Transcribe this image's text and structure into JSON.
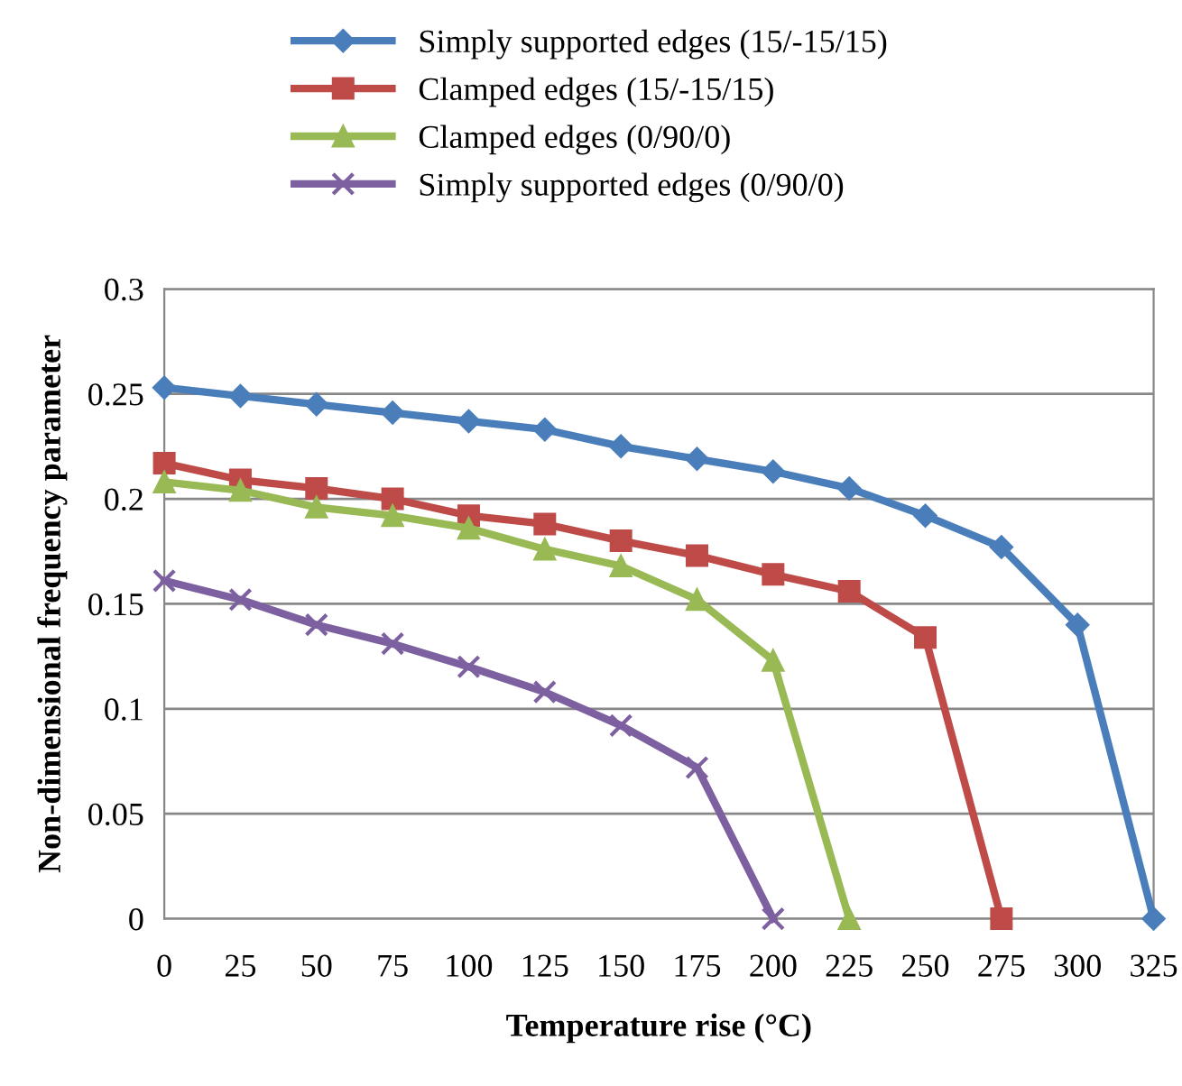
{
  "chart_data": {
    "type": "line",
    "xlabel": "Temperature rise (°C)",
    "ylabel": "Non-dimensional frequency parameter",
    "x": [
      0,
      25,
      50,
      75,
      100,
      125,
      150,
      175,
      200,
      225,
      250,
      275,
      300,
      325
    ],
    "xlim": [
      0,
      325
    ],
    "xticks": [
      0,
      25,
      50,
      75,
      100,
      125,
      150,
      175,
      200,
      225,
      250,
      275,
      300,
      325
    ],
    "ylim": [
      0,
      0.3
    ],
    "yticks": [
      0,
      0.05,
      0.1,
      0.15,
      0.2,
      0.25,
      0.3
    ],
    "grid": "y",
    "legend": "top",
    "line_style": "solid",
    "series": [
      {
        "name": "Simply supported edges (15/-15/15)",
        "color": "#4a7ebb",
        "marker": "diamond",
        "values": [
          0.253,
          0.249,
          0.245,
          0.241,
          0.237,
          0.233,
          0.225,
          0.219,
          0.213,
          0.205,
          0.192,
          0.177,
          0.14,
          0
        ]
      },
      {
        "name": "Clamped edges (15/-15/15)",
        "color": "#be4b48",
        "marker": "square",
        "values": [
          0.217,
          0.209,
          0.205,
          0.2,
          0.192,
          0.188,
          0.18,
          0.173,
          0.164,
          0.156,
          0.134,
          0,
          null,
          null
        ]
      },
      {
        "name": "Clamped edges (0/90/0)",
        "color": "#98b954",
        "marker": "triangle",
        "values": [
          0.208,
          0.204,
          0.196,
          0.192,
          0.186,
          0.176,
          0.168,
          0.152,
          0.123,
          0,
          null,
          null,
          null,
          null
        ]
      },
      {
        "name": "Simply supported edges (0/90/0)",
        "color": "#7d60a0",
        "marker": "cross",
        "values": [
          0.161,
          0.152,
          0.14,
          0.131,
          0.12,
          0.108,
          0.092,
          0.072,
          0,
          null,
          null,
          null,
          null,
          null
        ]
      }
    ]
  }
}
